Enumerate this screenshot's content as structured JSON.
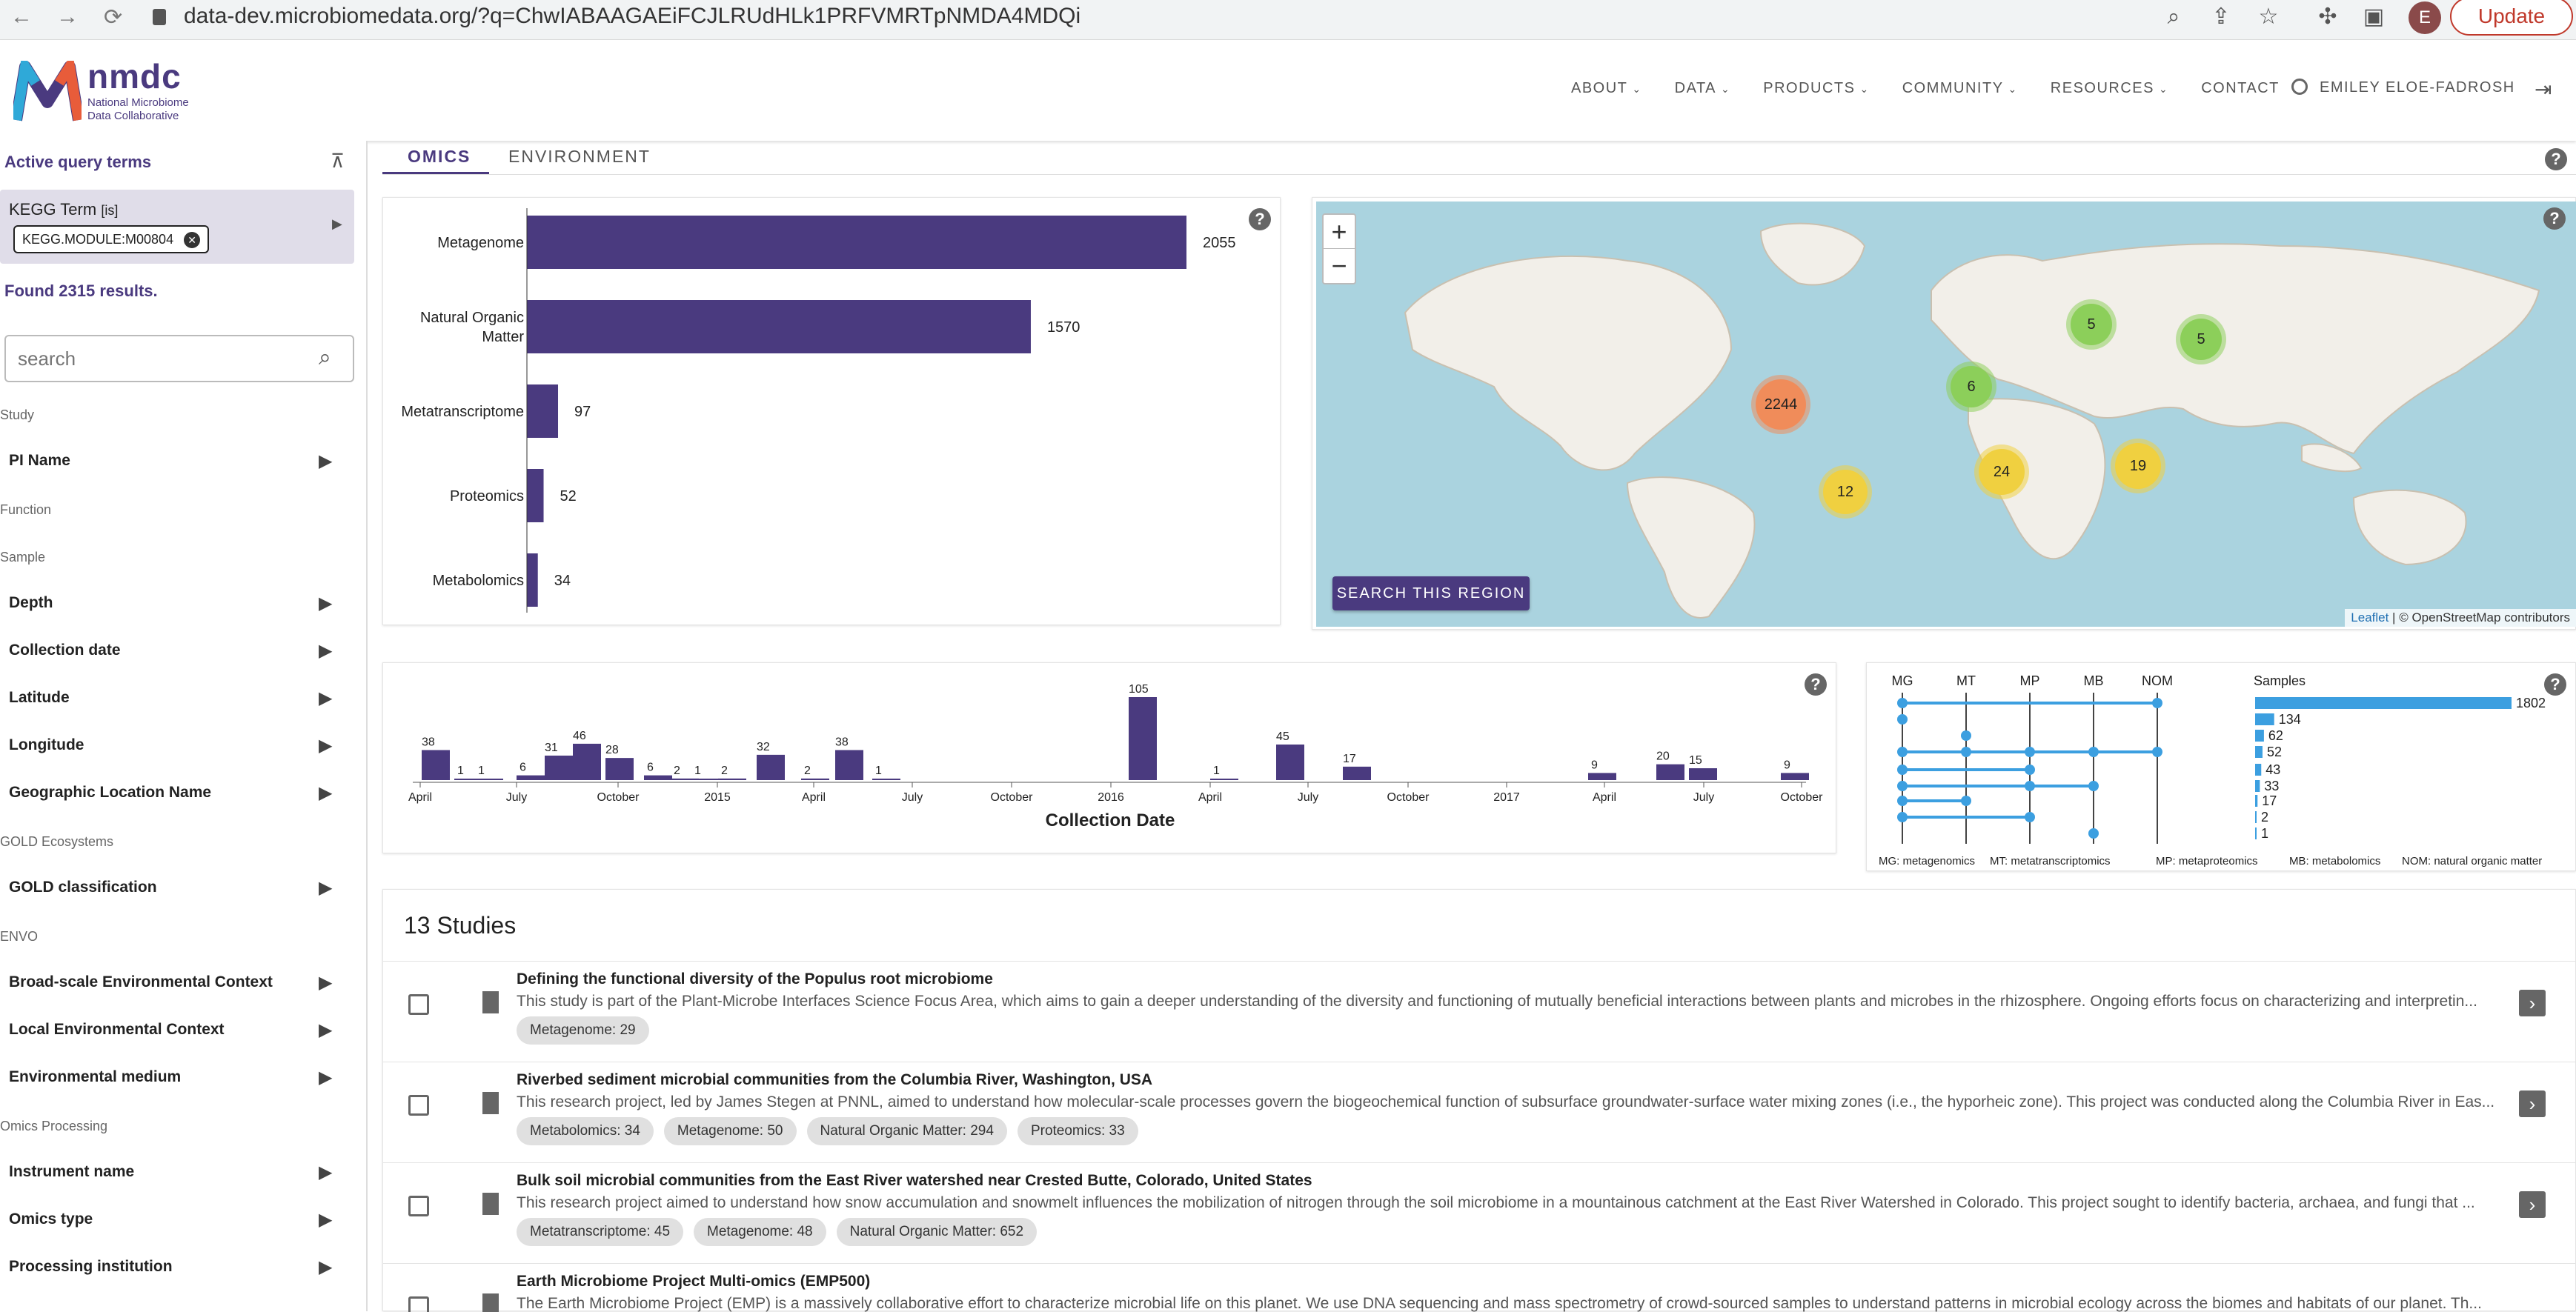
{
  "browser": {
    "url": "data-dev.microbiomedata.org/?q=ChwIABAAGAEiFCJLRUdHLk1PRFVMRTpNMDA4MDQi",
    "avatar_letter": "E",
    "update_label": "Update"
  },
  "header": {
    "logo_big": "nmdc",
    "logo_line1": "National Microbiome",
    "logo_line2": "Data Collaborative",
    "nav": [
      "ABOUT",
      "DATA",
      "PRODUCTS",
      "COMMUNITY",
      "RESOURCES",
      "CONTACT"
    ],
    "user": "EMILEY ELOE-FADROSH"
  },
  "sidebar": {
    "active_query_title": "Active query terms",
    "kegg_label": "KEGG Term",
    "kegg_op": "[is]",
    "kegg_value": "KEGG.MODULE:M00804",
    "found": "Found 2315 results.",
    "search_placeholder": "search",
    "sections": [
      {
        "title": "Study",
        "items": [
          "PI Name"
        ]
      },
      {
        "title": "Function",
        "items": []
      },
      {
        "title": "Sample",
        "items": [
          "Depth",
          "Collection date",
          "Latitude",
          "Longitude",
          "Geographic Location Name"
        ]
      },
      {
        "title": "GOLD Ecosystems",
        "items": [
          "GOLD classification"
        ]
      },
      {
        "title": "ENVO",
        "items": [
          "Broad-scale Environmental Context",
          "Local Environmental Context",
          "Environmental medium"
        ]
      },
      {
        "title": "Omics Processing",
        "items": [
          "Instrument name",
          "Omics type",
          "Processing institution"
        ]
      }
    ]
  },
  "tabs": [
    "OMICS",
    "ENVIRONMENT"
  ],
  "chart_data": [
    {
      "type": "bar",
      "orientation": "horizontal",
      "categories": [
        "Metagenome",
        "Natural Organic Matter",
        "Metatranscriptome",
        "Proteomics",
        "Metabolomics"
      ],
      "values": [
        2055,
        1570,
        97,
        52,
        34
      ]
    },
    {
      "type": "bar",
      "xlabel": "Collection Date",
      "tick_labels": [
        "April",
        "July",
        "October",
        "2015",
        "April",
        "July",
        "October",
        "2016",
        "April",
        "July",
        "October",
        "2017",
        "April",
        "July",
        "October"
      ],
      "values": [
        38,
        1,
        1,
        6,
        31,
        46,
        28,
        6,
        2,
        1,
        2,
        32,
        2,
        38,
        1,
        105,
        1,
        45,
        17,
        9,
        20,
        15,
        9
      ]
    },
    {
      "type": "upset",
      "set_labels": [
        "MG",
        "MT",
        "MP",
        "MB",
        "NOM"
      ],
      "sizes_label": "Samples",
      "values": [
        1802,
        134,
        62,
        52,
        43,
        33,
        17,
        2,
        1
      ],
      "legend": [
        "MG: metagenomics",
        "MT: metatranscriptomics",
        "MP: metaproteomics",
        "MB: metabolomics",
        "NOM: natural organic matter"
      ]
    }
  ],
  "map": {
    "clusters": [
      {
        "label": "2244",
        "color": "#f08c5a"
      },
      {
        "label": "6",
        "color": "#8ccf5a"
      },
      {
        "label": "5",
        "color": "#8ccf5a"
      },
      {
        "label": "5",
        "color": "#8ccf5a"
      },
      {
        "label": "12",
        "color": "#f0d040"
      },
      {
        "label": "24",
        "color": "#f0d040"
      },
      {
        "label": "19",
        "color": "#f0d040"
      }
    ],
    "search_region": "SEARCH THIS REGION",
    "attribution_leaflet": "Leaflet",
    "attribution_rest": " | © OpenStreetMap contributors"
  },
  "studies": {
    "title": "13 Studies",
    "items": [
      {
        "title": "Defining the functional diversity of the Populus root microbiome",
        "desc": "This study is part of the Plant-Microbe Interfaces Science Focus Area, which aims to gain a deeper understanding of the diversity and functioning of mutually beneficial interactions between plants and microbes in the rhizosphere. Ongoing efforts focus on characterizing and interpretin...",
        "chips": [
          "Metagenome: 29"
        ]
      },
      {
        "title": "Riverbed sediment microbial communities from the Columbia River, Washington, USA",
        "desc": "This research project, led by James Stegen at PNNL, aimed to understand how molecular-scale processes govern the biogeochemical function of subsurface groundwater-surface water mixing zones (i.e., the hyporheic zone). This project was conducted along the Columbia River in Eas...",
        "chips": [
          "Metabolomics: 34",
          "Metagenome: 50",
          "Natural Organic Matter: 294",
          "Proteomics: 33"
        ]
      },
      {
        "title": "Bulk soil microbial communities from the East River watershed near Crested Butte, Colorado, United States",
        "desc": "This research project aimed to understand how snow accumulation and snowmelt influences the mobilization of nitrogen through the soil microbiome in a mountainous catchment at the East River Watershed in Colorado. This project sought to identify bacteria, archaea, and fungi that ...",
        "chips": [
          "Metatranscriptome: 45",
          "Metagenome: 48",
          "Natural Organic Matter: 652"
        ]
      },
      {
        "title": "Earth Microbiome Project Multi-omics (EMP500)",
        "desc": "The Earth Microbiome Project (EMP) is a massively collaborative effort to characterize microbial life on this planet. We use DNA sequencing and mass spectrometry of crowd-sourced samples to understand patterns in microbial ecology across the biomes and habitats of our planet. Th...",
        "chips": []
      }
    ]
  }
}
